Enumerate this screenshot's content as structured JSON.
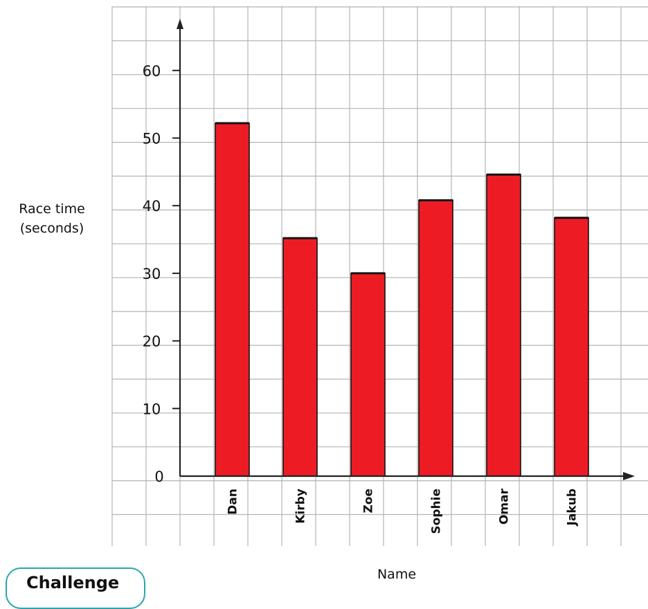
{
  "chart_data": {
    "type": "bar",
    "categories": [
      "Dan",
      "Kirby",
      "Zoe",
      "Sophie",
      "Omar",
      "Jakub"
    ],
    "values": [
      52.2,
      35.2,
      30,
      40.8,
      44.6,
      38.2
    ],
    "xlabel": "Name",
    "ylabel_lines": [
      "Race time",
      "(seconds)"
    ],
    "ylim": [
      0,
      65
    ],
    "yticks": [
      0,
      10,
      20,
      30,
      40,
      50,
      60
    ],
    "grid": true,
    "bar_color": "#ed1c24"
  },
  "badge": {
    "label": "Challenge"
  }
}
